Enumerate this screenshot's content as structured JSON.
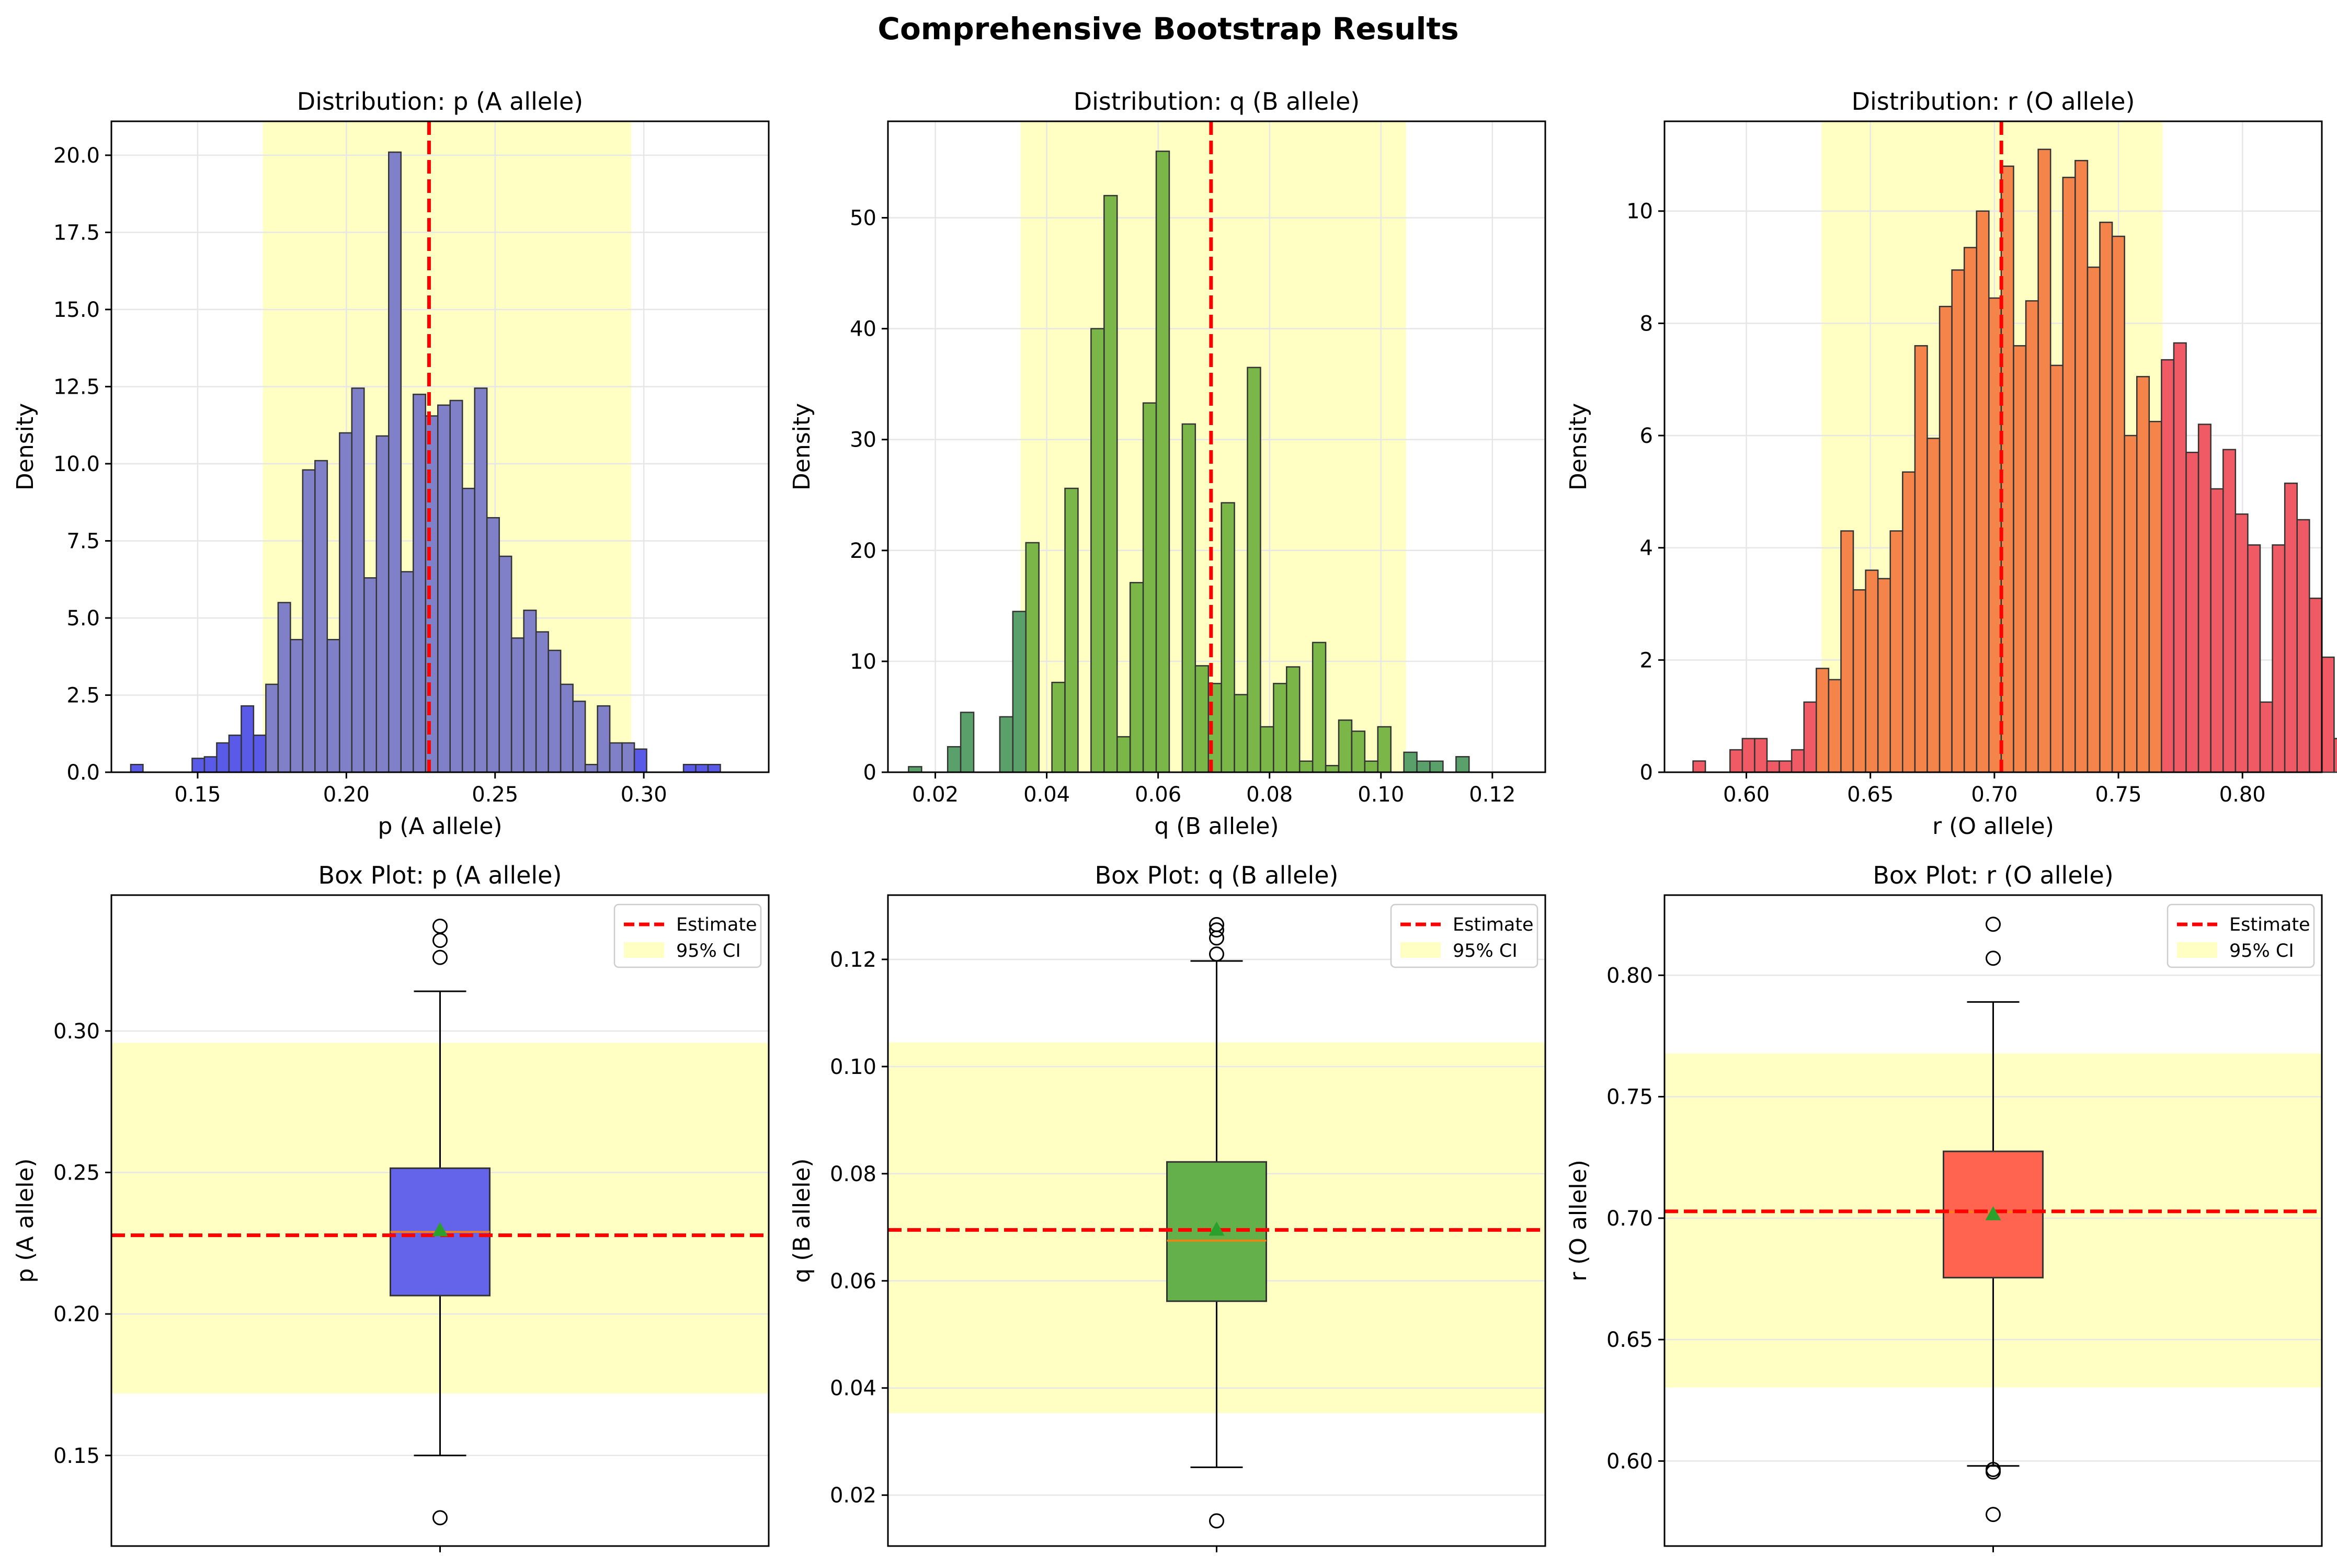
{
  "suptitle": "Comprehensive Bootstrap Results",
  "colors": {
    "estimate_line": "#ff0000",
    "ci_band": "#ffffc4",
    "grid": "#e6e6e6",
    "mean_marker": "#2ca02c",
    "median_line": "#ff7f0e",
    "p_in": "#8080c8",
    "p_out": "#5a5ae8",
    "p_box": "#6464ea",
    "q_in": "#7ab648",
    "q_out": "#5aa06a",
    "q_box": "#64b04a",
    "r_in": "#f5844a",
    "r_out": "#f05a64",
    "r_box": "#ff6450"
  },
  "legend": {
    "estimate": "Estimate",
    "ci": "95% CI"
  },
  "chart_data": [
    {
      "type": "bar",
      "key": "p",
      "title": "Distribution: p (A allele)",
      "xlabel": "p (A allele)",
      "ylabel": "Density",
      "xlim": [
        0.121,
        0.342
      ],
      "ylim": [
        0,
        21.1
      ],
      "xticks": [
        "0.15",
        "0.20",
        "0.25",
        "0.30"
      ],
      "xtick_values": [
        0.15,
        0.2,
        0.25,
        0.3
      ],
      "yticks": [
        "0.0",
        "2.5",
        "5.0",
        "7.5",
        "10.0",
        "12.5",
        "15.0",
        "17.5",
        "20.0"
      ],
      "ytick_values": [
        0,
        2.5,
        5,
        7.5,
        10,
        12.5,
        15,
        17.5,
        20
      ],
      "bin_start": 0.1275,
      "bin_width": 0.00413,
      "values": [
        0.25,
        0,
        0,
        0,
        0,
        0.45,
        0.5,
        0.95,
        1.2,
        2.15,
        1.2,
        2.85,
        5.5,
        4.3,
        9.8,
        10.1,
        4.3,
        11.0,
        12.45,
        6.3,
        10.9,
        20.1,
        6.5,
        12.25,
        11.55,
        11.9,
        12.05,
        9.2,
        12.45,
        8.25,
        7.0,
        4.35,
        5.25,
        4.55,
        3.95,
        2.85,
        2.3,
        0.25,
        2.15,
        0.95,
        0.95,
        0.75,
        0,
        0,
        0,
        0.25,
        0.25,
        0.25
      ],
      "estimate": 0.2278,
      "ci": [
        0.1719,
        0.2958
      ]
    },
    {
      "type": "bar",
      "key": "q",
      "title": "Distribution: q (B allele)",
      "xlabel": "q (B allele)",
      "ylabel": "Density",
      "xlim": [
        0.0115,
        0.1295
      ],
      "ylim": [
        0,
        58.7
      ],
      "xticks": [
        "0.02",
        "0.04",
        "0.06",
        "0.08",
        "0.10",
        "0.12"
      ],
      "xtick_values": [
        0.02,
        0.04,
        0.06,
        0.08,
        0.1,
        0.12
      ],
      "yticks": [
        "0",
        "10",
        "20",
        "30",
        "40",
        "50"
      ],
      "ytick_values": [
        0,
        10,
        20,
        30,
        40,
        50
      ],
      "bin_start": 0.0152,
      "bin_width": 0.00234,
      "values": [
        0.5,
        0,
        0,
        2.3,
        5.4,
        0,
        0,
        5.0,
        14.5,
        20.7,
        0,
        8.1,
        25.6,
        0,
        40.0,
        52.0,
        3.2,
        17.1,
        33.3,
        56.0,
        0,
        31.4,
        9.6,
        8.0,
        24.3,
        7.0,
        36.5,
        4.1,
        8.0,
        9.5,
        1.0,
        11.7,
        0.6,
        4.7,
        3.7,
        1.0,
        4.1,
        0,
        1.8,
        1.0,
        1.0,
        0,
        1.4
      ],
      "estimate": 0.0695,
      "ci": [
        0.0353,
        0.1045
      ]
    },
    {
      "type": "bar",
      "key": "r",
      "title": "Distribution: r (O allele)",
      "xlabel": "r (O allele)",
      "ylabel": "Density",
      "xlim": [
        0.567,
        0.832
      ],
      "ylim": [
        0,
        11.6
      ],
      "xticks": [
        "0.60",
        "0.65",
        "0.70",
        "0.75",
        "0.80"
      ],
      "xtick_values": [
        0.6,
        0.65,
        0.7,
        0.75,
        0.8
      ],
      "yticks": [
        "0",
        "2",
        "4",
        "6",
        "8",
        "10"
      ],
      "ytick_values": [
        0,
        2,
        4,
        6,
        8,
        10
      ],
      "bin_start": 0.5785,
      "bin_width": 0.00497,
      "values": [
        0.2,
        0,
        0,
        0.4,
        0.6,
        0.6,
        0.2,
        0.2,
        0.4,
        1.25,
        1.85,
        1.65,
        4.3,
        3.25,
        3.6,
        3.45,
        4.3,
        5.35,
        7.6,
        5.95,
        8.3,
        8.95,
        9.35,
        10.0,
        8.45,
        10.8,
        7.6,
        8.4,
        11.1,
        7.25,
        10.6,
        10.9,
        9.0,
        9.8,
        9.55,
        6.0,
        7.05,
        6.25,
        7.35,
        7.65,
        5.7,
        6.2,
        5.05,
        5.75,
        4.6,
        4.05,
        1.25,
        4.05,
        5.15,
        4.5,
        3.1,
        2.05,
        0.6,
        0.8,
        0.6,
        0.4,
        0,
        0,
        0,
        0.2,
        0,
        0,
        0.2
      ],
      "estimate": 0.7028,
      "ci": [
        0.6303,
        0.7678
      ]
    },
    {
      "type": "box",
      "key": "p",
      "title": "Box Plot: p (A allele)",
      "ylabel": "p (A allele)",
      "ylim": [
        0.118,
        0.348
      ],
      "yticks": [
        "0.15",
        "0.20",
        "0.25",
        "0.30"
      ],
      "ytick_values": [
        0.15,
        0.2,
        0.25,
        0.3
      ],
      "q1": 0.2065,
      "median": 0.229,
      "q3": 0.2515,
      "mean": 0.2295,
      "whisker_low": 0.15,
      "whisker_high": 0.314,
      "outliers": [
        0.128,
        0.326,
        0.332,
        0.337
      ],
      "estimate": 0.2278,
      "ci": [
        0.1719,
        0.2958
      ]
    },
    {
      "type": "box",
      "key": "q",
      "title": "Box Plot: q (B allele)",
      "ylabel": "q (B allele)",
      "ylim": [
        0.0105,
        0.132
      ],
      "yticks": [
        "0.02",
        "0.04",
        "0.06",
        "0.08",
        "0.10",
        "0.12"
      ],
      "ytick_values": [
        0.02,
        0.04,
        0.06,
        0.08,
        0.1,
        0.12
      ],
      "q1": 0.0562,
      "median": 0.0675,
      "q3": 0.0822,
      "mean": 0.0695,
      "whisker_low": 0.0252,
      "whisker_high": 0.1197,
      "outliers": [
        0.0152,
        0.121,
        0.124,
        0.1255,
        0.1265
      ],
      "estimate": 0.0695,
      "ci": [
        0.0353,
        0.1045
      ]
    },
    {
      "type": "box",
      "key": "r",
      "title": "Box Plot: r (O allele)",
      "ylabel": "r (O allele)",
      "ylim": [
        0.565,
        0.833
      ],
      "yticks": [
        "0.60",
        "0.65",
        "0.70",
        "0.75",
        "0.80"
      ],
      "ytick_values": [
        0.6,
        0.65,
        0.7,
        0.75,
        0.8
      ],
      "q1": 0.6755,
      "median": 0.7025,
      "q3": 0.7275,
      "mean": 0.7015,
      "whisker_low": 0.598,
      "whisker_high": 0.789,
      "outliers": [
        0.578,
        0.5955,
        0.5965,
        0.807,
        0.821
      ],
      "estimate": 0.7028,
      "ci": [
        0.6303,
        0.7678
      ]
    }
  ]
}
